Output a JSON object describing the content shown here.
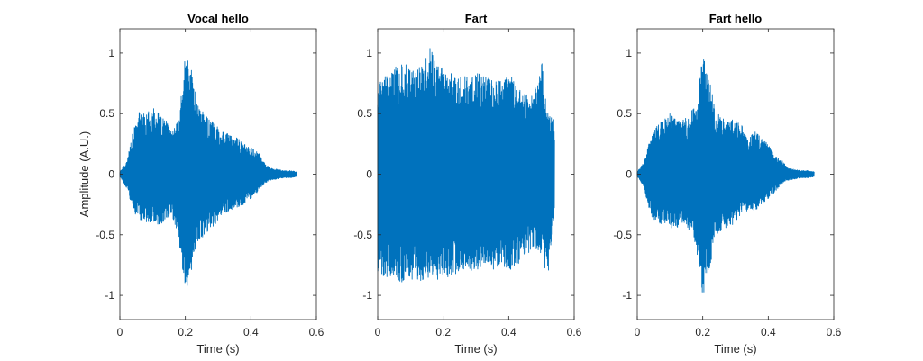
{
  "chart_data": [
    {
      "type": "line",
      "title": "Vocal hello",
      "xlabel": "Time (s)",
      "ylabel": "Amplitude (A.U.)",
      "xlim": [
        0,
        0.6
      ],
      "ylim": [
        -1.2,
        1.2
      ],
      "xticks": [
        0,
        0.2,
        0.4,
        0.6
      ],
      "xtick_labels": [
        "0",
        "0.2",
        "0.4",
        "0.6"
      ],
      "yticks": [
        1,
        0.5,
        0,
        -0.5,
        -1
      ],
      "ytick_labels": [
        "1",
        "0.5",
        "0",
        "-0.5",
        "-1"
      ],
      "grid": false,
      "color": "#0072BD",
      "series": [
        {
          "x": [
            0,
            0.02,
            0.04,
            0.06,
            0.08,
            0.1,
            0.12,
            0.14,
            0.16,
            0.18,
            0.2,
            0.22,
            0.24,
            0.26,
            0.28,
            0.3,
            0.32,
            0.34,
            0.36,
            0.38,
            0.4,
            0.42,
            0.44,
            0.46,
            0.48,
            0.5,
            0.52,
            0.54
          ],
          "envelope_upper": [
            0.02,
            0.1,
            0.35,
            0.52,
            0.5,
            0.55,
            0.5,
            0.45,
            0.35,
            0.45,
            1.0,
            0.85,
            0.55,
            0.5,
            0.45,
            0.4,
            0.35,
            0.32,
            0.3,
            0.25,
            0.22,
            0.2,
            0.1,
            0.05,
            0.04,
            0.03,
            0.03,
            0.02
          ],
          "envelope_lower": [
            -0.02,
            -0.12,
            -0.3,
            -0.38,
            -0.4,
            -0.4,
            -0.42,
            -0.38,
            -0.35,
            -0.55,
            -0.97,
            -0.8,
            -0.55,
            -0.5,
            -0.45,
            -0.38,
            -0.32,
            -0.3,
            -0.28,
            -0.25,
            -0.2,
            -0.15,
            -0.08,
            -0.05,
            -0.04,
            -0.03,
            -0.03,
            -0.02
          ]
        }
      ]
    },
    {
      "type": "line",
      "title": "Fart",
      "xlabel": "Time (s)",
      "ylabel": "",
      "xlim": [
        0,
        0.6
      ],
      "ylim": [
        -1.2,
        1.2
      ],
      "xticks": [
        0,
        0.2,
        0.4,
        0.6
      ],
      "xtick_labels": [
        "0",
        "0.2",
        "0.4",
        "0.6"
      ],
      "yticks": [
        1,
        0.5,
        0,
        -0.5,
        -1
      ],
      "ytick_labels": [
        "1",
        "0.5",
        "0",
        "-0.5",
        "-1"
      ],
      "grid": false,
      "color": "#0072BD",
      "series": [
        {
          "x": [
            0,
            0.02,
            0.04,
            0.06,
            0.08,
            0.1,
            0.12,
            0.14,
            0.16,
            0.18,
            0.2,
            0.22,
            0.24,
            0.26,
            0.28,
            0.3,
            0.32,
            0.34,
            0.36,
            0.38,
            0.4,
            0.42,
            0.44,
            0.46,
            0.48,
            0.5,
            0.52,
            0.54
          ],
          "envelope_upper": [
            0.75,
            0.8,
            0.85,
            0.9,
            0.92,
            0.9,
            0.88,
            0.9,
            1.05,
            0.9,
            0.88,
            0.85,
            0.85,
            0.82,
            0.8,
            0.85,
            0.82,
            0.8,
            0.78,
            0.8,
            0.85,
            0.75,
            0.7,
            0.65,
            0.7,
            0.95,
            0.5,
            0.45
          ],
          "envelope_lower": [
            -0.8,
            -0.85,
            -0.85,
            -0.9,
            -0.9,
            -0.9,
            -0.88,
            -0.9,
            -0.85,
            -0.88,
            -0.85,
            -0.85,
            -0.82,
            -0.8,
            -0.82,
            -0.8,
            -0.8,
            -0.78,
            -0.8,
            -0.75,
            -0.8,
            -0.78,
            -0.7,
            -0.65,
            -0.6,
            -0.7,
            -0.85,
            -0.4
          ]
        }
      ]
    },
    {
      "type": "line",
      "title": "Fart hello",
      "xlabel": "Time (s)",
      "ylabel": "",
      "xlim": [
        0,
        0.6
      ],
      "ylim": [
        -1.2,
        1.2
      ],
      "xticks": [
        0,
        0.2,
        0.4,
        0.6
      ],
      "xtick_labels": [
        "0",
        "0.2",
        "0.4",
        "0.6"
      ],
      "yticks": [
        1,
        0.5,
        0,
        -0.5,
        -1
      ],
      "ytick_labels": [
        "1",
        "0.5",
        "0",
        "-0.5",
        "-1"
      ],
      "grid": false,
      "color": "#0072BD",
      "series": [
        {
          "x": [
            0,
            0.02,
            0.04,
            0.06,
            0.08,
            0.1,
            0.12,
            0.14,
            0.16,
            0.18,
            0.2,
            0.22,
            0.24,
            0.26,
            0.28,
            0.3,
            0.32,
            0.34,
            0.36,
            0.38,
            0.4,
            0.42,
            0.44,
            0.46,
            0.48,
            0.5,
            0.52,
            0.54
          ],
          "envelope_upper": [
            0.02,
            0.1,
            0.3,
            0.4,
            0.45,
            0.5,
            0.45,
            0.45,
            0.5,
            0.6,
            1.0,
            0.8,
            0.5,
            0.5,
            0.45,
            0.45,
            0.4,
            0.32,
            0.35,
            0.3,
            0.25,
            0.15,
            0.12,
            0.05,
            0.04,
            0.03,
            0.03,
            0.02
          ],
          "envelope_lower": [
            -0.02,
            -0.1,
            -0.35,
            -0.4,
            -0.42,
            -0.45,
            -0.45,
            -0.4,
            -0.48,
            -0.6,
            -1.02,
            -0.8,
            -0.55,
            -0.45,
            -0.45,
            -0.4,
            -0.32,
            -0.3,
            -0.3,
            -0.25,
            -0.2,
            -0.15,
            -0.08,
            -0.05,
            -0.04,
            -0.03,
            -0.03,
            -0.02
          ]
        }
      ]
    }
  ]
}
